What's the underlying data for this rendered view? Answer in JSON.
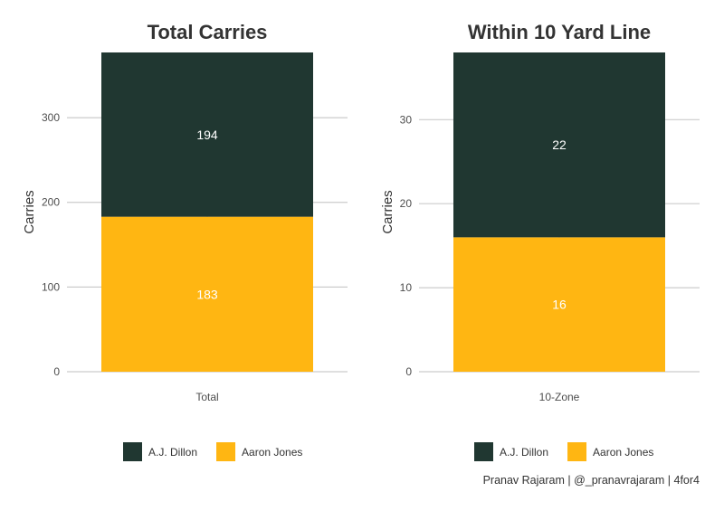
{
  "chart_data": [
    {
      "type": "bar",
      "stacked": true,
      "title": "Total Carries",
      "xlabel": "",
      "ylabel": "Carries",
      "categories": [
        "Total"
      ],
      "ylim": [
        0,
        377
      ],
      "yticks": [
        0,
        100,
        200,
        300
      ],
      "series": [
        {
          "name": "Aaron Jones",
          "values": [
            183
          ],
          "color": "#FFB612"
        },
        {
          "name": "A.J. Dillon",
          "values": [
            194
          ],
          "color": "#203731"
        }
      ],
      "legend": {
        "position": "bottom",
        "order": [
          "A.J. Dillon",
          "Aaron Jones"
        ]
      },
      "grid": true
    },
    {
      "type": "bar",
      "stacked": true,
      "title": "Within 10 Yard Line",
      "xlabel": "",
      "ylabel": "Carries",
      "categories": [
        "10-Zone"
      ],
      "ylim": [
        0,
        38
      ],
      "yticks": [
        0,
        10,
        20,
        30
      ],
      "series": [
        {
          "name": "Aaron Jones",
          "values": [
            16
          ],
          "color": "#FFB612"
        },
        {
          "name": "A.J. Dillon",
          "values": [
            22
          ],
          "color": "#203731"
        }
      ],
      "legend": {
        "position": "bottom",
        "order": [
          "A.J. Dillon",
          "Aaron Jones"
        ]
      },
      "grid": true
    }
  ],
  "caption": "Pranav Rajaram | @_pranavrajaram | 4for4"
}
